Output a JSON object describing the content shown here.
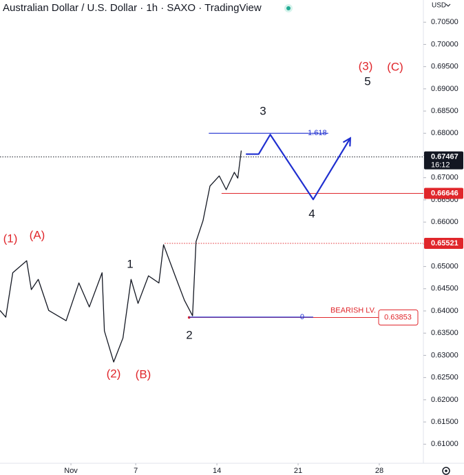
{
  "chart_data": {
    "type": "line",
    "title": "Australian Dollar / U.S. Dollar · 1h · SAXO · TradingView",
    "currency": "USD",
    "x": [
      -4.7,
      -4.2,
      -3.6,
      -2.4,
      -2.0,
      -1.4,
      -0.5,
      1.0,
      2.1,
      3.0,
      4.1,
      4.3,
      5.1,
      5.9,
      6.6,
      7.2,
      8.1,
      9.0,
      9.4,
      10.4,
      11.2,
      11.9,
      12.2,
      12.8,
      13.4,
      14.2,
      14.8,
      15.5,
      15.8,
      16.1
    ],
    "values": [
      0.6401,
      0.6386,
      0.6486,
      0.6513,
      0.6448,
      0.6471,
      0.6401,
      0.6378,
      0.6463,
      0.6409,
      0.6486,
      0.6355,
      0.6285,
      0.6339,
      0.6471,
      0.6417,
      0.6479,
      0.6463,
      0.6549,
      0.6479,
      0.6424,
      0.6389,
      0.6556,
      0.6603,
      0.6681,
      0.6704,
      0.6673,
      0.6712,
      0.6699,
      0.6761
    ],
    "color": "#131722",
    "projection": {
      "x": [
        16.5,
        17.6,
        18.6,
        22.3,
        25.5
      ],
      "values": [
        0.6753,
        0.6753,
        0.6797,
        0.6651,
        0.6789
      ],
      "color": "#1f2fd0"
    },
    "xlim": [
      -4.7,
      31.8
    ],
    "xticks": [
      {
        "value": 1,
        "label": "Nov"
      },
      7,
      14,
      21,
      28
    ],
    "ylim": [
      0.6057,
      0.71
    ],
    "yticks": [
      {
        "value": 0.61,
        "label": "0.61000"
      },
      {
        "value": 0.615,
        "label": "0.61500"
      },
      {
        "value": 0.62,
        "label": "0.62000"
      },
      {
        "value": 0.625,
        "label": "0.62500"
      },
      {
        "value": 0.63,
        "label": "0.63000"
      },
      {
        "value": 0.635,
        "label": "0.63500"
      },
      {
        "value": 0.64,
        "label": "0.64000"
      },
      {
        "value": 0.645,
        "label": "0.64500"
      },
      {
        "value": 0.65,
        "label": "0.65000"
      },
      {
        "value": 0.655,
        "label": "0.65500"
      },
      {
        "value": 0.66,
        "label": "0.66000"
      },
      {
        "value": 0.665,
        "label": "0.66500"
      },
      {
        "value": 0.67,
        "label": "0.67000"
      },
      {
        "value": 0.675,
        "label": "0.67500"
      },
      {
        "value": 0.68,
        "label": "0.68000"
      },
      {
        "value": 0.685,
        "label": "0.68500"
      },
      {
        "value": 0.69,
        "label": "0.69000"
      },
      {
        "value": 0.695,
        "label": "0.69500"
      },
      {
        "value": 0.7,
        "label": "0.70000"
      },
      {
        "value": 0.705,
        "label": "0.70500"
      }
    ],
    "fib_levels": [
      {
        "value": 0.68,
        "label": "1.618",
        "from": 13.3,
        "to": 23.6,
        "color": "#1f2fd0"
      },
      {
        "value": 0.6386,
        "label": "0",
        "from": 11.6,
        "to": 22.3,
        "color": "#1f2fd0"
      }
    ],
    "price_labels": [
      {
        "value": 0.67467,
        "color": "#131722",
        "time": "16:12",
        "style": "dotted"
      },
      {
        "value": 0.66646,
        "color": "#e0262b",
        "from": 14.4,
        "style": "solid"
      },
      {
        "value": 0.65521,
        "color": "#e0262b",
        "from": 9.5,
        "style": "dotted"
      }
    ],
    "bearish": {
      "value": 0.63853,
      "label": "BEARISH LV.",
      "from": 11.6,
      "color": "#e0262b"
    },
    "annotations": [
      {
        "text": "(1)",
        "color": "#e0262b"
      },
      {
        "text": "(A)",
        "color": "#e0262b"
      },
      {
        "text": "1",
        "color": "#131722"
      },
      {
        "text": "(2)",
        "color": "#e0262b"
      },
      {
        "text": "(B)",
        "color": "#e0262b"
      },
      {
        "text": "2",
        "color": "#131722"
      },
      {
        "text": "3",
        "color": "#131722"
      },
      {
        "text": "4",
        "color": "#131722"
      },
      {
        "text": "5",
        "color": "#131722"
      },
      {
        "text": "(3)",
        "color": "#e0262b"
      },
      {
        "text": "(C)",
        "color": "#e0262b"
      }
    ]
  }
}
